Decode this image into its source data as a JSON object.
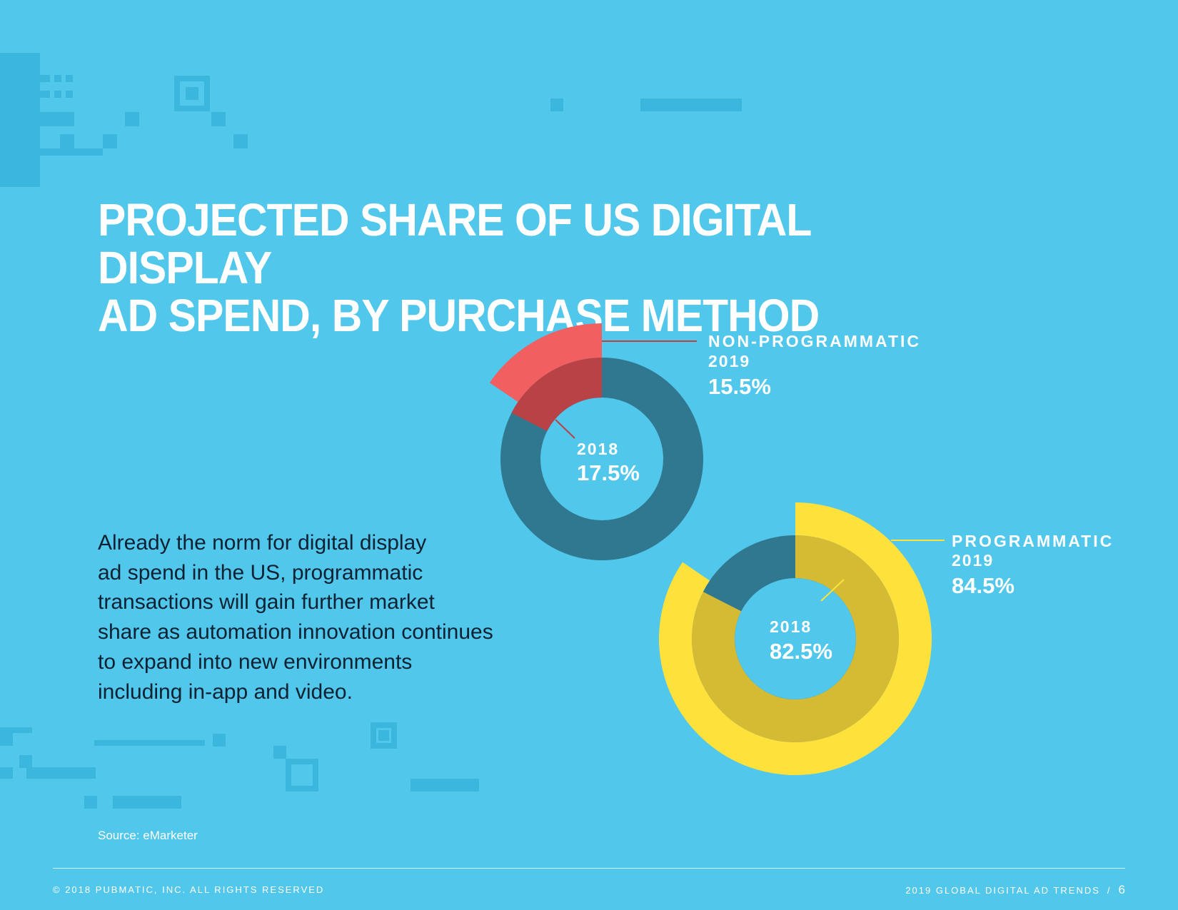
{
  "page": {
    "title_lines": [
      "PROJECTED SHARE OF US DIGITAL DISPLAY",
      "AD SPEND, BY PURCHASE METHOD"
    ],
    "body_lines": [
      "Already the norm for digital display",
      "ad spend in the US, programmatic",
      "transactions will gain further market",
      "share as automation innovation continues",
      "to expand into new environments",
      "including in-app and video."
    ],
    "source": "Source: eMarketer",
    "footer_left": "© 2018 PUBMATIC, INC. ALL RIGHTS RESERVED",
    "footer_right_label": "2019 GLOBAL DIGITAL AD TRENDS",
    "footer_separator": "/",
    "page_number": "6"
  },
  "colors": {
    "background": "#51c7eb",
    "ring_base": "#30788f",
    "non_programmatic_2019": "#f15f60",
    "non_programmatic_2018": "#b84245",
    "programmatic_2019": "#ffe13c",
    "programmatic_2018": "#d4bb33"
  },
  "chart_data": [
    {
      "type": "pie",
      "series": [
        {
          "name": "NON-PROGRAMMATIC",
          "year": "2019",
          "value": 15.5,
          "label": "15.5%"
        },
        {
          "name": "NON-PROGRAMMATIC",
          "year": "2018",
          "value": 17.5,
          "label": "17.5%"
        }
      ],
      "labels": {
        "category": "NON-PROGRAMMATIC",
        "year_2019": "2019",
        "year_2018": "2018"
      }
    },
    {
      "type": "pie",
      "series": [
        {
          "name": "PROGRAMMATIC",
          "year": "2019",
          "value": 84.5,
          "label": "84.5%"
        },
        {
          "name": "PROGRAMMATIC",
          "year": "2018",
          "value": 82.5,
          "label": "82.5%"
        }
      ],
      "labels": {
        "category": "PROGRAMMATIC",
        "year_2019": "2019",
        "year_2018": "2018"
      }
    }
  ]
}
